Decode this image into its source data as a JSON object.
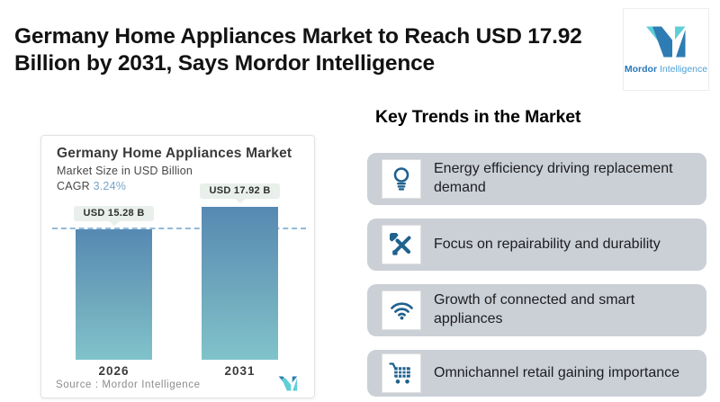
{
  "header": {
    "title": "Germany Home Appliances Market to Reach USD 17.92 Billion by 2031, Says Mordor Intelligence"
  },
  "logo": {
    "name_bold": "Mordor",
    "name_light": "Intelligence"
  },
  "chart": {
    "title": "Germany Home Appliances Market",
    "subtitle": "Market Size in USD Billion",
    "cagr_label": "CAGR",
    "cagr_value": "3.24%",
    "source_label": "Source : Mordor Intelligence"
  },
  "chart_data": {
    "type": "bar",
    "title": "Germany Home Appliances Market",
    "subtitle": "Market Size in USD Billion",
    "cagr": "3.24%",
    "categories": [
      "2026",
      "2031"
    ],
    "values": [
      15.28,
      17.92
    ],
    "bar_labels": [
      "USD 15.28 B",
      "USD 17.92 B"
    ],
    "ylabel": "Market Size in USD Billion",
    "ylim": [
      0,
      19
    ],
    "reference_line": 15.28,
    "grid": false,
    "legend": "none",
    "bar_gradient": [
      "#5689b2",
      "#80c3ca"
    ],
    "source": "Source : Mordor Intelligence"
  },
  "trends": {
    "heading": "Key Trends in the Market",
    "items": [
      {
        "icon": "lightbulb-icon",
        "text": "Energy efficiency driving replacement demand"
      },
      {
        "icon": "tools-icon",
        "text": "Focus on repairability and durability"
      },
      {
        "icon": "wifi-icon",
        "text": "Growth of connected and smart appliances"
      },
      {
        "icon": "cart-icon",
        "text": "Omnichannel retail gaining importance"
      }
    ]
  },
  "colors": {
    "accent_icon_blue": "#1f628f",
    "trend_card_grey": "#cbd0d7",
    "bar_top": "#5689b2",
    "bar_bottom": "#80c3ca",
    "dashed_line": "#93bbd9",
    "badge_bg": "#e9efeb",
    "logo_blue": "#2e7cb4",
    "logo_teal": "#5ecfd6",
    "cagr_value_blue": "#76a5c6"
  }
}
